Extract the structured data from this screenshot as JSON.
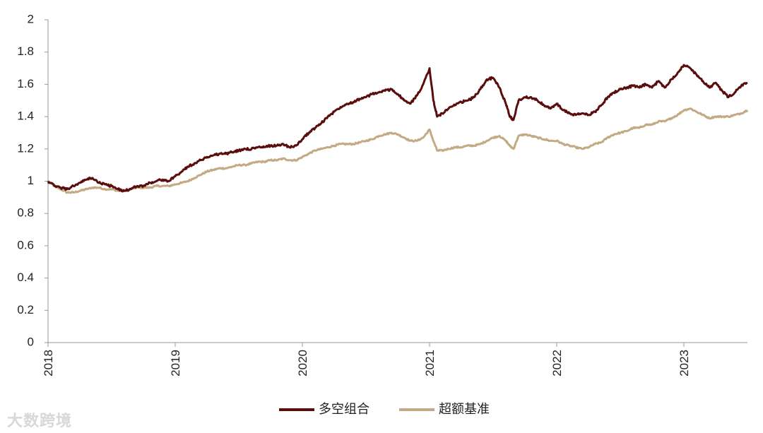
{
  "chart_data": {
    "type": "line",
    "title": "",
    "xlabel": "",
    "ylabel": "",
    "xlim": [
      2018.0,
      2023.5
    ],
    "ylim": [
      0,
      2
    ],
    "y_ticks": [
      "0",
      "0.2",
      "0.4",
      "0.6",
      "0.8",
      "1",
      "1.2",
      "1.4",
      "1.6",
      "1.8",
      "2"
    ],
    "x_ticks": [
      "2018",
      "2019",
      "2020",
      "2021",
      "2022",
      "2023"
    ],
    "grid": false,
    "legend_position": "bottom",
    "series": [
      {
        "name": "多空组合",
        "color": "#5a0d0d",
        "x": [
          2018.0,
          2018.05,
          2018.1,
          2018.15,
          2018.2,
          2018.25,
          2018.3,
          2018.35,
          2018.4,
          2018.45,
          2018.5,
          2018.55,
          2018.6,
          2018.65,
          2018.7,
          2018.75,
          2018.8,
          2018.85,
          2018.9,
          2018.95,
          2019.0,
          2019.05,
          2019.1,
          2019.15,
          2019.2,
          2019.25,
          2019.3,
          2019.35,
          2019.4,
          2019.45,
          2019.5,
          2019.55,
          2019.6,
          2019.65,
          2019.7,
          2019.75,
          2019.8,
          2019.85,
          2019.9,
          2019.95,
          2020.0,
          2020.05,
          2020.1,
          2020.15,
          2020.2,
          2020.25,
          2020.3,
          2020.35,
          2020.4,
          2020.45,
          2020.5,
          2020.55,
          2020.6,
          2020.65,
          2020.7,
          2020.75,
          2020.8,
          2020.85,
          2020.9,
          2020.95,
          2021.0,
          2021.03,
          2021.06,
          2021.1,
          2021.15,
          2021.2,
          2021.25,
          2021.3,
          2021.35,
          2021.4,
          2021.45,
          2021.5,
          2021.55,
          2021.6,
          2021.63,
          2021.66,
          2021.7,
          2021.75,
          2021.8,
          2021.85,
          2021.9,
          2021.95,
          2022.0,
          2022.05,
          2022.1,
          2022.15,
          2022.2,
          2022.25,
          2022.3,
          2022.35,
          2022.4,
          2022.45,
          2022.5,
          2022.55,
          2022.6,
          2022.65,
          2022.7,
          2022.75,
          2022.8,
          2022.85,
          2022.9,
          2022.95,
          2023.0,
          2023.05,
          2023.1,
          2023.15,
          2023.2,
          2023.25,
          2023.3,
          2023.35,
          2023.4,
          2023.45,
          2023.5
        ],
        "values": [
          1.0,
          0.97,
          0.96,
          0.95,
          0.97,
          0.99,
          1.01,
          1.02,
          0.99,
          0.98,
          0.97,
          0.95,
          0.94,
          0.95,
          0.97,
          0.97,
          0.99,
          1.0,
          1.01,
          1.0,
          1.03,
          1.06,
          1.09,
          1.11,
          1.13,
          1.15,
          1.16,
          1.17,
          1.17,
          1.18,
          1.19,
          1.2,
          1.2,
          1.21,
          1.21,
          1.22,
          1.22,
          1.23,
          1.21,
          1.22,
          1.26,
          1.3,
          1.33,
          1.36,
          1.4,
          1.43,
          1.46,
          1.48,
          1.49,
          1.51,
          1.52,
          1.54,
          1.55,
          1.56,
          1.57,
          1.54,
          1.5,
          1.48,
          1.53,
          1.6,
          1.7,
          1.5,
          1.4,
          1.42,
          1.45,
          1.47,
          1.49,
          1.5,
          1.52,
          1.57,
          1.63,
          1.64,
          1.58,
          1.48,
          1.4,
          1.38,
          1.5,
          1.52,
          1.52,
          1.5,
          1.47,
          1.45,
          1.48,
          1.44,
          1.42,
          1.41,
          1.42,
          1.41,
          1.43,
          1.47,
          1.52,
          1.55,
          1.57,
          1.58,
          1.59,
          1.58,
          1.6,
          1.58,
          1.62,
          1.58,
          1.63,
          1.67,
          1.72,
          1.7,
          1.66,
          1.62,
          1.58,
          1.61,
          1.56,
          1.52,
          1.55,
          1.59,
          1.61
        ]
      },
      {
        "name": "超额基准",
        "color": "#c4aa84",
        "x": [
          2018.0,
          2018.05,
          2018.1,
          2018.15,
          2018.2,
          2018.25,
          2018.3,
          2018.35,
          2018.4,
          2018.45,
          2018.5,
          2018.55,
          2018.6,
          2018.65,
          2018.7,
          2018.75,
          2018.8,
          2018.85,
          2018.9,
          2018.95,
          2019.0,
          2019.05,
          2019.1,
          2019.15,
          2019.2,
          2019.25,
          2019.3,
          2019.35,
          2019.4,
          2019.45,
          2019.5,
          2019.55,
          2019.6,
          2019.65,
          2019.7,
          2019.75,
          2019.8,
          2019.85,
          2019.9,
          2019.95,
          2020.0,
          2020.05,
          2020.1,
          2020.15,
          2020.2,
          2020.25,
          2020.3,
          2020.35,
          2020.4,
          2020.45,
          2020.5,
          2020.55,
          2020.6,
          2020.65,
          2020.7,
          2020.75,
          2020.8,
          2020.85,
          2020.9,
          2020.95,
          2021.0,
          2021.03,
          2021.06,
          2021.1,
          2021.15,
          2021.2,
          2021.25,
          2021.3,
          2021.35,
          2021.4,
          2021.45,
          2021.5,
          2021.55,
          2021.6,
          2021.63,
          2021.66,
          2021.7,
          2021.75,
          2021.8,
          2021.85,
          2021.9,
          2021.95,
          2022.0,
          2022.05,
          2022.1,
          2022.15,
          2022.2,
          2022.25,
          2022.3,
          2022.35,
          2022.4,
          2022.45,
          2022.5,
          2022.55,
          2022.6,
          2022.65,
          2022.7,
          2022.75,
          2022.8,
          2022.85,
          2022.9,
          2022.95,
          2023.0,
          2023.05,
          2023.1,
          2023.15,
          2023.2,
          2023.25,
          2023.3,
          2023.35,
          2023.4,
          2023.45,
          2023.5
        ],
        "values": [
          1.0,
          0.97,
          0.95,
          0.93,
          0.93,
          0.94,
          0.95,
          0.96,
          0.96,
          0.95,
          0.95,
          0.94,
          0.94,
          0.95,
          0.96,
          0.96,
          0.96,
          0.97,
          0.97,
          0.97,
          0.98,
          0.99,
          1.0,
          1.02,
          1.04,
          1.06,
          1.07,
          1.08,
          1.08,
          1.09,
          1.1,
          1.1,
          1.11,
          1.12,
          1.12,
          1.13,
          1.13,
          1.14,
          1.13,
          1.13,
          1.15,
          1.17,
          1.19,
          1.2,
          1.21,
          1.22,
          1.23,
          1.23,
          1.23,
          1.24,
          1.25,
          1.26,
          1.28,
          1.29,
          1.3,
          1.29,
          1.27,
          1.25,
          1.25,
          1.27,
          1.32,
          1.25,
          1.19,
          1.19,
          1.2,
          1.21,
          1.21,
          1.22,
          1.22,
          1.23,
          1.25,
          1.27,
          1.28,
          1.25,
          1.22,
          1.2,
          1.28,
          1.29,
          1.28,
          1.27,
          1.26,
          1.25,
          1.25,
          1.23,
          1.22,
          1.21,
          1.2,
          1.21,
          1.23,
          1.24,
          1.27,
          1.29,
          1.3,
          1.31,
          1.33,
          1.33,
          1.35,
          1.35,
          1.37,
          1.37,
          1.39,
          1.41,
          1.44,
          1.45,
          1.43,
          1.41,
          1.39,
          1.4,
          1.4,
          1.4,
          1.41,
          1.42,
          1.44
        ]
      }
    ]
  },
  "watermark": "大数跨境"
}
